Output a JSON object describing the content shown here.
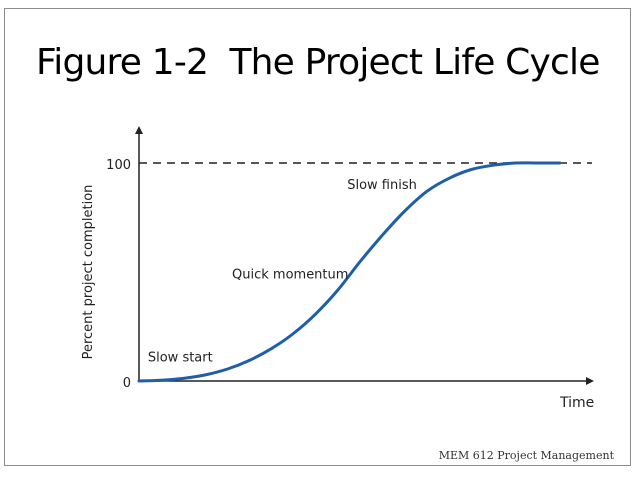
{
  "slide": {
    "title": "Figure 1-2  The Project Life Cycle",
    "footer": "MEM 612 Project Management"
  },
  "chart_data": {
    "type": "line",
    "title": "",
    "xlabel": "Time",
    "ylabel": "Percent project completion",
    "yticks": [
      "0",
      "100"
    ],
    "ylim": [
      0,
      100
    ],
    "xlim": [
      0,
      1
    ],
    "grid": false,
    "legend": "none",
    "reference_line": {
      "y": 100,
      "style": "dashed"
    },
    "series": [
      {
        "color": "#1f5fa8",
        "x": [
          0.0,
          0.05,
          0.1,
          0.15,
          0.2,
          0.25,
          0.3,
          0.35,
          0.4,
          0.45,
          0.5,
          0.55,
          0.6,
          0.65,
          0.7,
          0.75,
          0.8,
          0.85,
          0.9,
          0.95
        ],
        "y": [
          0,
          0.3,
          1.2,
          2.8,
          5.5,
          9.5,
          15,
          22,
          31,
          42,
          55,
          67,
          78,
          87,
          93,
          97,
          99,
          100,
          100,
          100
        ]
      }
    ],
    "annotations": [
      {
        "text": "Slow start",
        "x": 0.02,
        "y": 9
      },
      {
        "text": "Quick momentum",
        "x": 0.21,
        "y": 47
      },
      {
        "text": "Slow finish",
        "x": 0.47,
        "y": 88
      }
    ]
  }
}
